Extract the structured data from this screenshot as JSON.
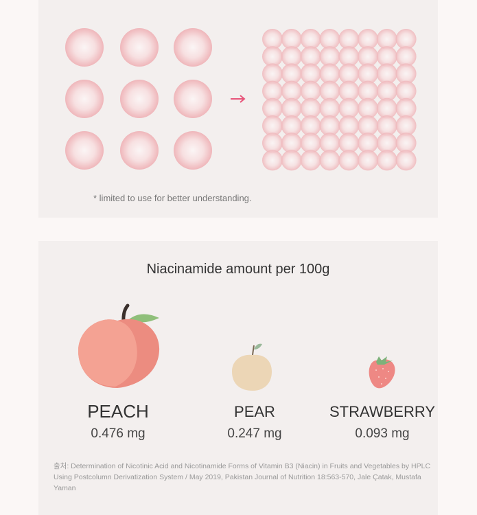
{
  "top": {
    "arrow_color": "#e8557a",
    "circle_color": "#f0b7bb",
    "note": "* limited to use for better understanding."
  },
  "bottom": {
    "title": "Niacinamide amount per 100g",
    "fruits": [
      {
        "name": "PEACH",
        "amount": "0.476 mg",
        "icon": "peach-icon"
      },
      {
        "name": "PEAR",
        "amount": "0.247 mg",
        "icon": "pear-icon"
      },
      {
        "name": "STRAWBERRY",
        "amount": "0.093 mg",
        "icon": "strawberry-icon"
      }
    ],
    "citation_line1": "출처: Determination of Nicotinic Acid and Nicotinamide Forms of Vitamin B3 (Niacin) in Fruits and Vegetables by HPLC",
    "citation_line2": "Using Postcolumn Derivatization System / May 2019, Pakistan Journal of Nutrition 18:563-570, Jale Çatak, Mustafa Yaman"
  }
}
